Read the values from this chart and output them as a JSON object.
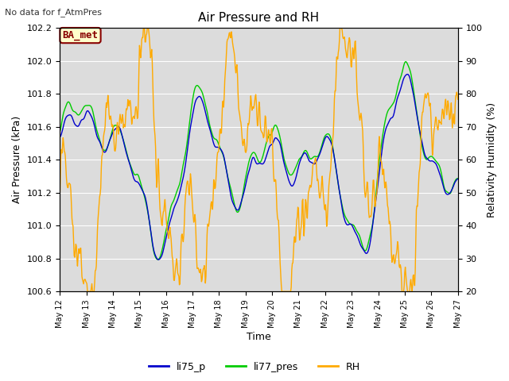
{
  "title": "Air Pressure and RH",
  "top_left_text": "No data for f_AtmPres",
  "annotation_text": "BA_met",
  "xlabel": "Time",
  "ylabel_left": "Air Pressure (kPa)",
  "ylabel_right": "Relativity Humidity (%)",
  "xlim_days": [
    12,
    27
  ],
  "ylim_left": [
    100.6,
    102.2
  ],
  "ylim_right": [
    20,
    100
  ],
  "xtick_labels": [
    "May 12",
    "May 13",
    "May 14",
    "May 15",
    "May 16",
    "May 17",
    "May 18",
    "May 19",
    "May 20",
    "May 21",
    "May 22",
    "May 23",
    "May 24",
    "May 25",
    "May 26",
    "May 27"
  ],
  "yticks_left": [
    100.6,
    100.8,
    101.0,
    101.2,
    101.4,
    101.6,
    101.8,
    102.0,
    102.2
  ],
  "yticks_right": [
    20,
    30,
    40,
    50,
    60,
    70,
    80,
    90,
    100
  ],
  "color_li75": "#0000cc",
  "color_li77": "#00cc00",
  "color_rh": "#ffaa00",
  "background_color": "#dcdcdc",
  "legend_entries": [
    "li75_p",
    "li77_pres",
    "RH"
  ],
  "grid_color": "#ffffff",
  "annotation_bg": "#ffffcc",
  "annotation_border": "#880000",
  "annotation_text_color": "#880000",
  "fig_width": 6.4,
  "fig_height": 4.8,
  "dpi": 100
}
